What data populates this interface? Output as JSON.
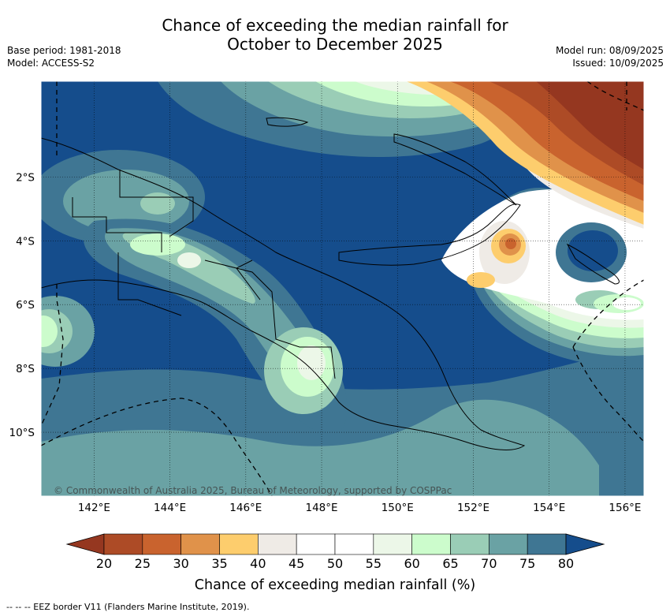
{
  "title": {
    "line1": "Chance of exceeding the median rainfall for",
    "line2": "October to December 2025"
  },
  "meta_left": {
    "base_period": "Base period: 1981-2018",
    "model": "Model: ACCESS-S2"
  },
  "meta_right": {
    "model_run": "Model run: 08/09/2025",
    "issued": "Issued: 10/09/2025"
  },
  "map": {
    "lon_range": [
      140.6,
      156.5
    ],
    "lat_range": [
      -12.0,
      1.0
    ],
    "lon_ticks": [
      "142°E",
      "144°E",
      "146°E",
      "148°E",
      "150°E",
      "152°E",
      "154°E",
      "156°E"
    ],
    "lat_ticks": [
      "2°S",
      "4°S",
      "6°S",
      "8°S",
      "10°S"
    ],
    "gridlines": "dotted",
    "watermark": "© Commonwealth of Australia 2025, Bureau of Meteorology, supported by COSPPac",
    "background_class_color": "#154d8c"
  },
  "colorbar": {
    "labels": [
      "20",
      "25",
      "30",
      "35",
      "40",
      "45",
      "50",
      "55",
      "60",
      "65",
      "70",
      "75",
      "80"
    ],
    "colors": [
      "#ad4b26",
      "#c9632e",
      "#e0924a",
      "#fdcd6d",
      "#efebe6",
      "#ffffff",
      "#ffffff",
      "#ecf7e8",
      "#ccfccc",
      "#9acdb6",
      "#6aa2a4",
      "#3f7693"
    ],
    "under_color": "#953720",
    "over_color": "#154d8c",
    "title": "Chance of exceeding median rainfall (%)"
  },
  "footer": "-- -- -- EEZ border V11 (Flanders Marine Institute, 2019)."
}
